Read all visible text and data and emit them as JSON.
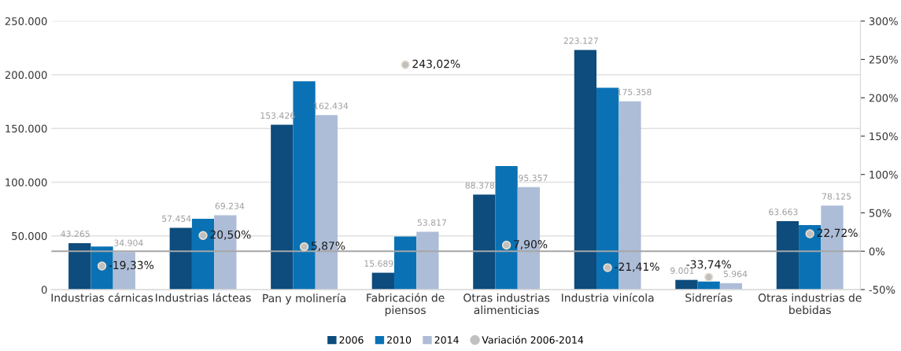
{
  "chart_data": {
    "type": "bar",
    "categories": [
      "Industrias cárnicas",
      "Industrias lácteas",
      "Pan y molinería",
      "Fabricación de piensos",
      "Otras industrias alimenticias",
      "Industria vinícola",
      "Sidrerías",
      "Otras industrias de bebidas"
    ],
    "series": [
      {
        "name": "2006",
        "color": "#0d4c7c",
        "values": [
          43265,
          57454,
          153426,
          15689,
          88378,
          223127,
          9001,
          63663
        ],
        "value_labels": [
          "43.265",
          "57.454",
          "153.426",
          "15.689",
          "88.378",
          "223.127",
          "9.001",
          "63.663"
        ]
      },
      {
        "name": "2010",
        "color": "#0a72b4",
        "values": [
          40000,
          66000,
          194000,
          49500,
          115000,
          188000,
          7500,
          60000
        ]
      },
      {
        "name": "2014",
        "color": "#adbdd7",
        "values": [
          34904,
          69234,
          162434,
          53817,
          95357,
          175358,
          5964,
          78125
        ],
        "value_labels": [
          "34.904",
          "69.234",
          "162.434",
          "53.817",
          "95.357",
          "175.358",
          "5.964",
          "78.125"
        ]
      },
      {
        "name": "Variación 2006-2014",
        "type": "scatter",
        "axis": "y2",
        "color": "#c0c0c0",
        "values": [
          -19.33,
          20.5,
          5.87,
          243.02,
          7.9,
          -21.41,
          -33.74,
          22.72
        ],
        "value_labels": [
          "-19,33%",
          "20,50%",
          "5,87%",
          "243,02%",
          "7,90%",
          "-21,41%",
          "-33,74%",
          "22,72%"
        ]
      }
    ],
    "ylim": [
      0,
      250000
    ],
    "yticks": [
      {
        "value": 0,
        "label": "0"
      },
      {
        "value": 50000,
        "label": "50.000"
      },
      {
        "value": 100000,
        "label": "100.000"
      },
      {
        "value": 150000,
        "label": "150.000"
      },
      {
        "value": 200000,
        "label": "200.000"
      },
      {
        "value": 250000,
        "label": "250.000"
      }
    ],
    "y2lim": [
      -50,
      300
    ],
    "y2ticks": [
      {
        "value": -50,
        "label": "-50%"
      },
      {
        "value": 0,
        "label": "0%"
      },
      {
        "value": 50,
        "label": "50%"
      },
      {
        "value": 100,
        "label": "100%"
      },
      {
        "value": 150,
        "label": "150%"
      },
      {
        "value": 200,
        "label": "200%"
      },
      {
        "value": 250,
        "label": "250%"
      },
      {
        "value": 300,
        "label": "300%"
      }
    ],
    "ref_lines": [
      {
        "axis": "y2",
        "value": 0,
        "color": "#a6a6a6"
      }
    ],
    "grid": "y",
    "legend": "bottom",
    "marker": "circle"
  }
}
